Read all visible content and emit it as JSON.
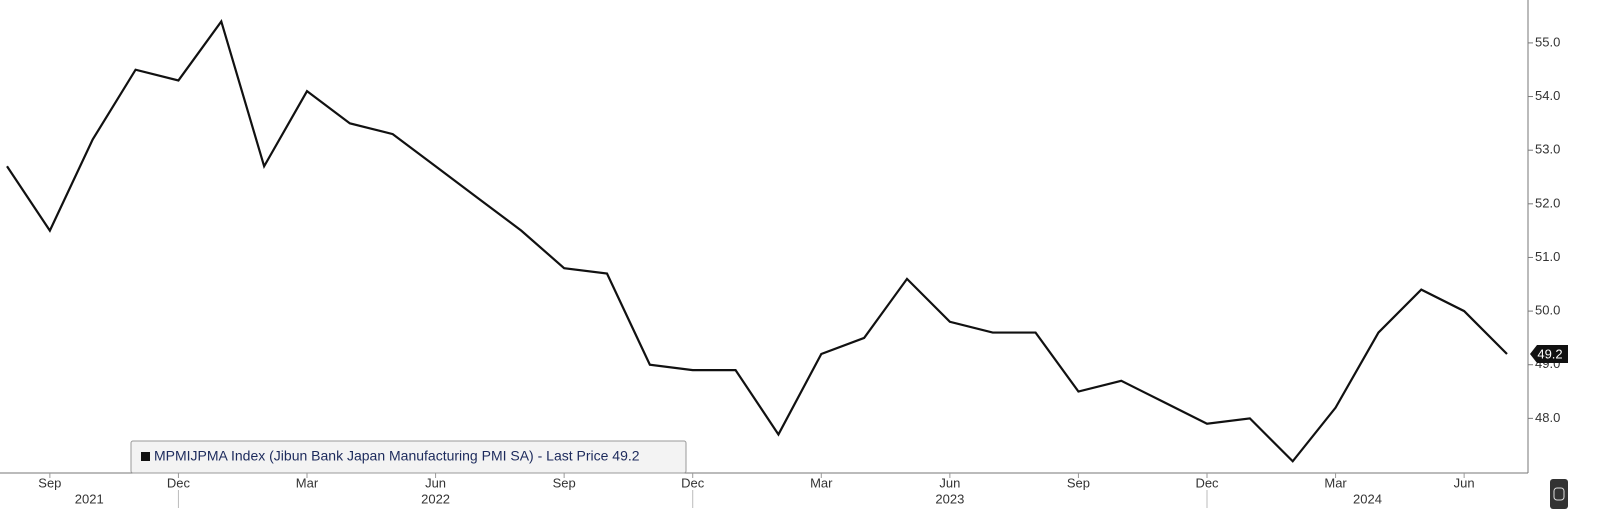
{
  "chart_data": {
    "type": "line",
    "x": [
      "2021-08",
      "2021-09",
      "2021-10",
      "2021-11",
      "2021-12",
      "2022-01",
      "2022-02",
      "2022-03",
      "2022-04",
      "2022-05",
      "2022-06",
      "2022-07",
      "2022-08",
      "2022-09",
      "2022-10",
      "2022-11",
      "2022-12",
      "2023-01",
      "2023-02",
      "2023-03",
      "2023-04",
      "2023-05",
      "2023-06",
      "2023-07",
      "2023-08",
      "2023-09",
      "2023-10",
      "2023-11",
      "2023-12",
      "2024-01",
      "2024-02",
      "2024-03",
      "2024-04",
      "2024-05",
      "2024-06",
      "2024-07"
    ],
    "series": [
      {
        "name": "MPMIJPMA Index (Jibun Bank Japan Manufacturing PMI SA) - Last Price 49.2",
        "color": "#111111",
        "values": [
          52.7,
          51.5,
          53.2,
          54.5,
          54.3,
          55.4,
          52.7,
          54.1,
          53.5,
          53.3,
          52.7,
          52.1,
          51.5,
          50.8,
          50.7,
          49.0,
          48.9,
          48.9,
          47.7,
          49.2,
          49.5,
          50.6,
          49.8,
          49.6,
          49.6,
          48.5,
          48.7,
          48.3,
          47.9,
          48.0,
          47.2,
          48.2,
          49.6,
          50.4,
          50.0,
          49.2
        ]
      }
    ],
    "ylim": [
      47,
      55.8
    ],
    "yticks": [
      {
        "value": 48,
        "label": "48.0"
      },
      {
        "value": 49,
        "label": "49.0"
      },
      {
        "value": 50,
        "label": "50.0"
      },
      {
        "value": 51,
        "label": "51.0"
      },
      {
        "value": 52,
        "label": "52.0"
      },
      {
        "value": 53,
        "label": "53.0"
      },
      {
        "value": 54,
        "label": "54.0"
      },
      {
        "value": 55,
        "label": "55.0"
      }
    ],
    "xticks": [
      {
        "value": "2021-09",
        "label": "Sep"
      },
      {
        "value": "2021-12",
        "label": "Dec"
      },
      {
        "value": "2022-03",
        "label": "Mar"
      },
      {
        "value": "2022-06",
        "label": "Jun"
      },
      {
        "value": "2022-09",
        "label": "Sep"
      },
      {
        "value": "2022-12",
        "label": "Dec"
      },
      {
        "value": "2023-03",
        "label": "Mar"
      },
      {
        "value": "2023-06",
        "label": "Jun"
      },
      {
        "value": "2023-09",
        "label": "Sep"
      },
      {
        "value": "2023-12",
        "label": "Dec"
      },
      {
        "value": "2024-03",
        "label": "Mar"
      },
      {
        "value": "2024-06",
        "label": "Jun"
      }
    ],
    "years": [
      "2021",
      "2022",
      "2023",
      "2024"
    ],
    "last_value_label": "49.2"
  }
}
